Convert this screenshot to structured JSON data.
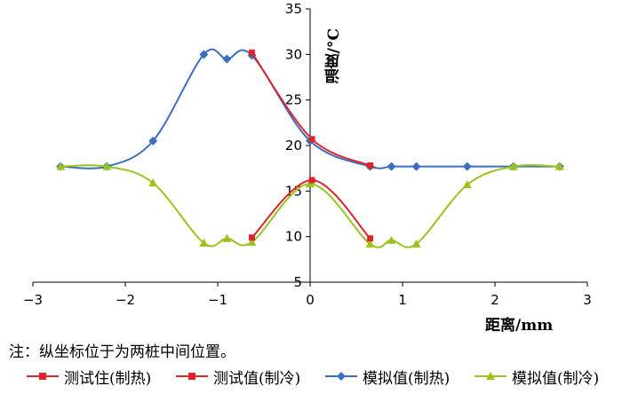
{
  "note": "注：纵坐标位于为两桩中间位置。",
  "chart_data": {
    "type": "line",
    "xlabel": "距离/mm",
    "ylabel": "温度/°C",
    "xlim": [
      -3,
      3
    ],
    "ylim": [
      5,
      35
    ],
    "xticks": [
      "−3",
      "−2",
      "−1",
      "0",
      "1",
      "2",
      "3"
    ],
    "yticks": [
      "5",
      "10",
      "15",
      "20",
      "25",
      "30",
      "35"
    ],
    "grid": false,
    "legend_position": "bottom",
    "series": [
      {
        "name": "测试住(制热)",
        "color": "#e0242b",
        "marker": "square",
        "x": [
          -0.63,
          0.02,
          0.65
        ],
        "y": [
          30.2,
          20.7,
          17.8
        ]
      },
      {
        "name": "测试值(制冷)",
        "color": "#e0242b",
        "marker": "square",
        "x": [
          -0.63,
          0.02,
          0.65
        ],
        "y": [
          9.9,
          16.2,
          9.8
        ]
      },
      {
        "name": "模拟值(制热)",
        "color": "#3a6fc0",
        "marker": "diamond",
        "x": [
          -2.7,
          -2.2,
          -1.7,
          -1.15,
          -0.9,
          -0.63,
          0.0,
          0.65,
          0.88,
          1.15,
          1.7,
          2.2,
          2.7
        ],
        "y": [
          17.7,
          17.7,
          20.5,
          30.0,
          29.5,
          29.9,
          20.5,
          17.7,
          17.7,
          17.7,
          17.7,
          17.7,
          17.7
        ]
      },
      {
        "name": "模拟值(制冷)",
        "color": "#9bc31d",
        "marker": "triangle",
        "x": [
          -2.7,
          -2.2,
          -1.7,
          -1.15,
          -0.9,
          -0.63,
          0.0,
          0.65,
          0.88,
          1.15,
          1.7,
          2.2,
          2.7
        ],
        "y": [
          17.7,
          17.7,
          15.9,
          9.3,
          9.8,
          9.4,
          15.8,
          9.2,
          9.6,
          9.2,
          15.7,
          17.7,
          17.7
        ]
      }
    ]
  }
}
